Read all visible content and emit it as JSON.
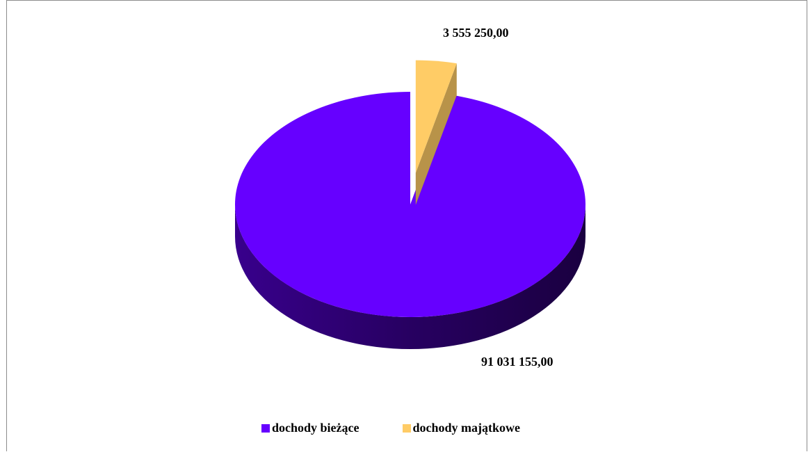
{
  "chart_data": {
    "type": "pie",
    "title": "",
    "slices": [
      {
        "name": "dochody bieżące",
        "value": 91031155.0,
        "label": "91 031 155,00",
        "color": "#6600ff"
      },
      {
        "name": "dochody majątkowe",
        "value": 3555250.0,
        "label": "3 555 250,00",
        "color": "#ffcc66"
      }
    ],
    "exploded": [
      "dochody majątkowe"
    ],
    "style": "3d",
    "legend_position": "bottom"
  },
  "legend": {
    "items": [
      {
        "label": "dochody bieżące",
        "color": "#6600ff"
      },
      {
        "label": "dochody majątkowe",
        "color": "#ffcc66"
      }
    ]
  }
}
